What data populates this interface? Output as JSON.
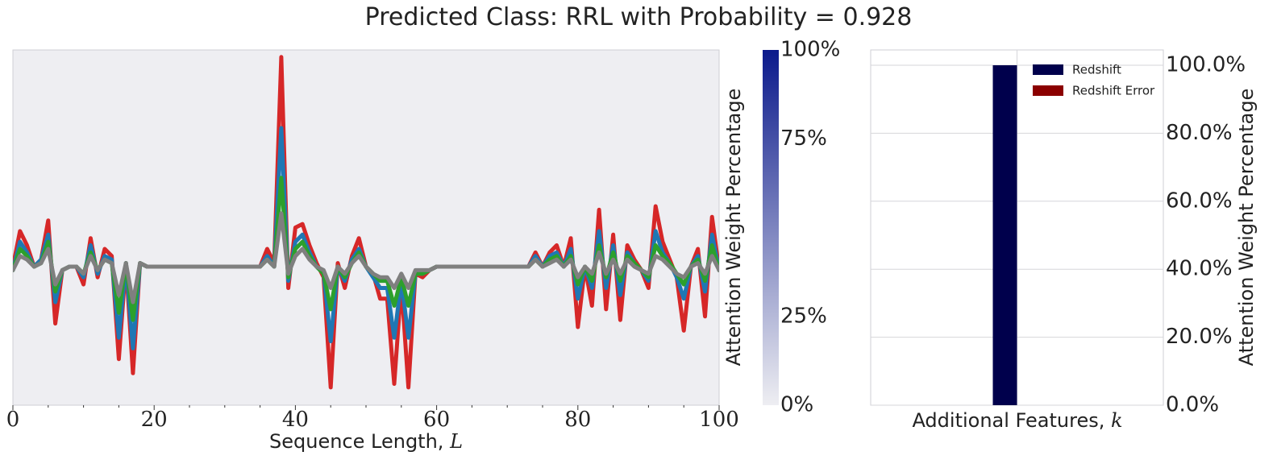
{
  "title": "Predicted Class: RRL with Probability = 0.928",
  "colors": {
    "panel_bg": "#eeeef2",
    "colorbar_top": "#0b1a8c",
    "colorbar_bottom": "#eeeef2",
    "redshift": "#00004c",
    "redshift_error": "#8b0000",
    "series": [
      "#d62728",
      "#1f77b4",
      "#2ca02c",
      "#7f7f7f"
    ]
  },
  "chart_data": [
    {
      "type": "line",
      "xlabel": "Sequence Length, ",
      "xlabel_var": "L",
      "xlim": [
        0,
        100
      ],
      "x_ticks": [
        0,
        20,
        40,
        60,
        80,
        100
      ],
      "x_tick_labels": [
        "0",
        "20",
        "40",
        "60",
        "80",
        "100"
      ],
      "grid": false,
      "x": [
        0,
        1,
        2,
        3,
        4,
        5,
        6,
        7,
        8,
        9,
        10,
        11,
        12,
        13,
        14,
        15,
        16,
        17,
        18,
        19,
        20,
        21,
        22,
        23,
        24,
        25,
        26,
        27,
        28,
        29,
        30,
        31,
        32,
        33,
        34,
        35,
        36,
        37,
        38,
        39,
        40,
        41,
        42,
        43,
        44,
        45,
        46,
        47,
        48,
        49,
        50,
        51,
        52,
        53,
        54,
        55,
        56,
        57,
        58,
        59,
        60,
        61,
        62,
        63,
        64,
        65,
        66,
        67,
        68,
        69,
        70,
        71,
        72,
        73,
        74,
        75,
        76,
        77,
        78,
        79,
        80,
        81,
        82,
        83,
        84,
        85,
        86,
        87,
        88,
        89,
        90,
        91,
        92,
        93,
        94,
        95,
        96,
        97,
        98,
        99,
        100
      ],
      "series": [
        {
          "values": [
            0.39,
            0.49,
            0.45,
            0.39,
            0.41,
            0.52,
            0.23,
            0.38,
            0.39,
            0.39,
            0.34,
            0.47,
            0.36,
            0.44,
            0.42,
            0.13,
            0.4,
            0.09,
            0.4,
            0.39,
            0.39,
            0.39,
            0.39,
            0.39,
            0.39,
            0.39,
            0.39,
            0.39,
            0.39,
            0.39,
            0.39,
            0.39,
            0.39,
            0.39,
            0.39,
            0.39,
            0.44,
            0.4,
            0.98,
            0.33,
            0.5,
            0.51,
            0.45,
            0.4,
            0.36,
            0.05,
            0.4,
            0.33,
            0.42,
            0.47,
            0.39,
            0.37,
            0.3,
            0.3,
            0.06,
            0.34,
            0.05,
            0.37,
            0.36,
            0.38,
            0.39,
            0.39,
            0.39,
            0.39,
            0.39,
            0.39,
            0.39,
            0.39,
            0.39,
            0.39,
            0.39,
            0.39,
            0.39,
            0.39,
            0.43,
            0.39,
            0.43,
            0.45,
            0.39,
            0.47,
            0.22,
            0.39,
            0.28,
            0.55,
            0.27,
            0.48,
            0.24,
            0.45,
            0.41,
            0.38,
            0.33,
            0.56,
            0.46,
            0.41,
            0.36,
            0.21,
            0.39,
            0.44,
            0.25,
            0.53,
            0.38
          ]
        },
        {
          "values": [
            0.38,
            0.46,
            0.43,
            0.39,
            0.41,
            0.48,
            0.29,
            0.38,
            0.39,
            0.39,
            0.36,
            0.45,
            0.37,
            0.42,
            0.41,
            0.19,
            0.4,
            0.16,
            0.4,
            0.39,
            0.39,
            0.39,
            0.39,
            0.39,
            0.39,
            0.39,
            0.39,
            0.39,
            0.39,
            0.39,
            0.39,
            0.39,
            0.39,
            0.39,
            0.39,
            0.39,
            0.42,
            0.39,
            0.78,
            0.35,
            0.46,
            0.48,
            0.43,
            0.39,
            0.37,
            0.18,
            0.39,
            0.35,
            0.41,
            0.44,
            0.39,
            0.36,
            0.33,
            0.33,
            0.19,
            0.35,
            0.19,
            0.37,
            0.37,
            0.38,
            0.39,
            0.39,
            0.39,
            0.39,
            0.39,
            0.39,
            0.39,
            0.39,
            0.39,
            0.39,
            0.39,
            0.39,
            0.39,
            0.39,
            0.42,
            0.39,
            0.42,
            0.43,
            0.39,
            0.44,
            0.3,
            0.39,
            0.33,
            0.49,
            0.33,
            0.45,
            0.31,
            0.43,
            0.4,
            0.38,
            0.35,
            0.49,
            0.43,
            0.4,
            0.36,
            0.3,
            0.39,
            0.42,
            0.32,
            0.48,
            0.38
          ]
        },
        {
          "values": [
            0.38,
            0.44,
            0.42,
            0.39,
            0.4,
            0.46,
            0.32,
            0.38,
            0.39,
            0.39,
            0.37,
            0.43,
            0.38,
            0.41,
            0.4,
            0.26,
            0.4,
            0.24,
            0.4,
            0.39,
            0.39,
            0.39,
            0.39,
            0.39,
            0.39,
            0.39,
            0.39,
            0.39,
            0.39,
            0.39,
            0.39,
            0.39,
            0.39,
            0.39,
            0.39,
            0.39,
            0.41,
            0.39,
            0.64,
            0.36,
            0.44,
            0.46,
            0.42,
            0.39,
            0.37,
            0.27,
            0.39,
            0.36,
            0.4,
            0.43,
            0.39,
            0.37,
            0.35,
            0.35,
            0.28,
            0.36,
            0.28,
            0.37,
            0.37,
            0.38,
            0.39,
            0.39,
            0.39,
            0.39,
            0.39,
            0.39,
            0.39,
            0.39,
            0.39,
            0.39,
            0.39,
            0.39,
            0.39,
            0.39,
            0.41,
            0.39,
            0.41,
            0.42,
            0.39,
            0.42,
            0.34,
            0.39,
            0.35,
            0.45,
            0.36,
            0.43,
            0.35,
            0.42,
            0.4,
            0.38,
            0.36,
            0.45,
            0.42,
            0.4,
            0.37,
            0.34,
            0.39,
            0.41,
            0.35,
            0.45,
            0.38
          ]
        },
        {
          "values": [
            0.38,
            0.42,
            0.41,
            0.39,
            0.4,
            0.44,
            0.34,
            0.38,
            0.39,
            0.39,
            0.37,
            0.42,
            0.38,
            0.41,
            0.4,
            0.31,
            0.4,
            0.29,
            0.4,
            0.39,
            0.39,
            0.39,
            0.39,
            0.39,
            0.39,
            0.39,
            0.39,
            0.39,
            0.39,
            0.39,
            0.39,
            0.39,
            0.39,
            0.39,
            0.39,
            0.39,
            0.41,
            0.39,
            0.54,
            0.37,
            0.42,
            0.44,
            0.41,
            0.39,
            0.38,
            0.33,
            0.39,
            0.37,
            0.4,
            0.42,
            0.39,
            0.37,
            0.36,
            0.36,
            0.33,
            0.37,
            0.33,
            0.38,
            0.38,
            0.38,
            0.39,
            0.39,
            0.39,
            0.39,
            0.39,
            0.39,
            0.39,
            0.39,
            0.39,
            0.39,
            0.39,
            0.39,
            0.39,
            0.39,
            0.41,
            0.39,
            0.4,
            0.41,
            0.39,
            0.41,
            0.36,
            0.39,
            0.37,
            0.43,
            0.37,
            0.41,
            0.37,
            0.41,
            0.39,
            0.38,
            0.37,
            0.42,
            0.41,
            0.39,
            0.37,
            0.36,
            0.39,
            0.4,
            0.37,
            0.42,
            0.38
          ]
        }
      ],
      "colorbar": {
        "label": "Attention Weight Percentage",
        "ticks": [
          0,
          25,
          75,
          100
        ],
        "tick_labels": [
          "0%",
          "25%",
          "75%",
          "100%"
        ],
        "range": [
          0,
          100
        ]
      }
    },
    {
      "type": "bar",
      "categories": [
        "Redshift",
        "Redshift Error"
      ],
      "values": [
        100.0,
        0.0
      ],
      "xlabel": "Additional Features, ",
      "xlabel_var": "k",
      "ylabel": "Attention Weight Percentage",
      "ylim": [
        0,
        104.5
      ],
      "y_ticks": [
        0,
        20,
        40,
        60,
        80,
        100
      ],
      "y_tick_labels": [
        "0.0%",
        "20.0%",
        "40.0%",
        "60.0%",
        "80.0%",
        "100.0%"
      ],
      "grid": true,
      "legend": {
        "placement": "top-right",
        "entries": [
          {
            "label": "Redshift"
          },
          {
            "label": "Redshift Error"
          }
        ]
      }
    }
  ]
}
